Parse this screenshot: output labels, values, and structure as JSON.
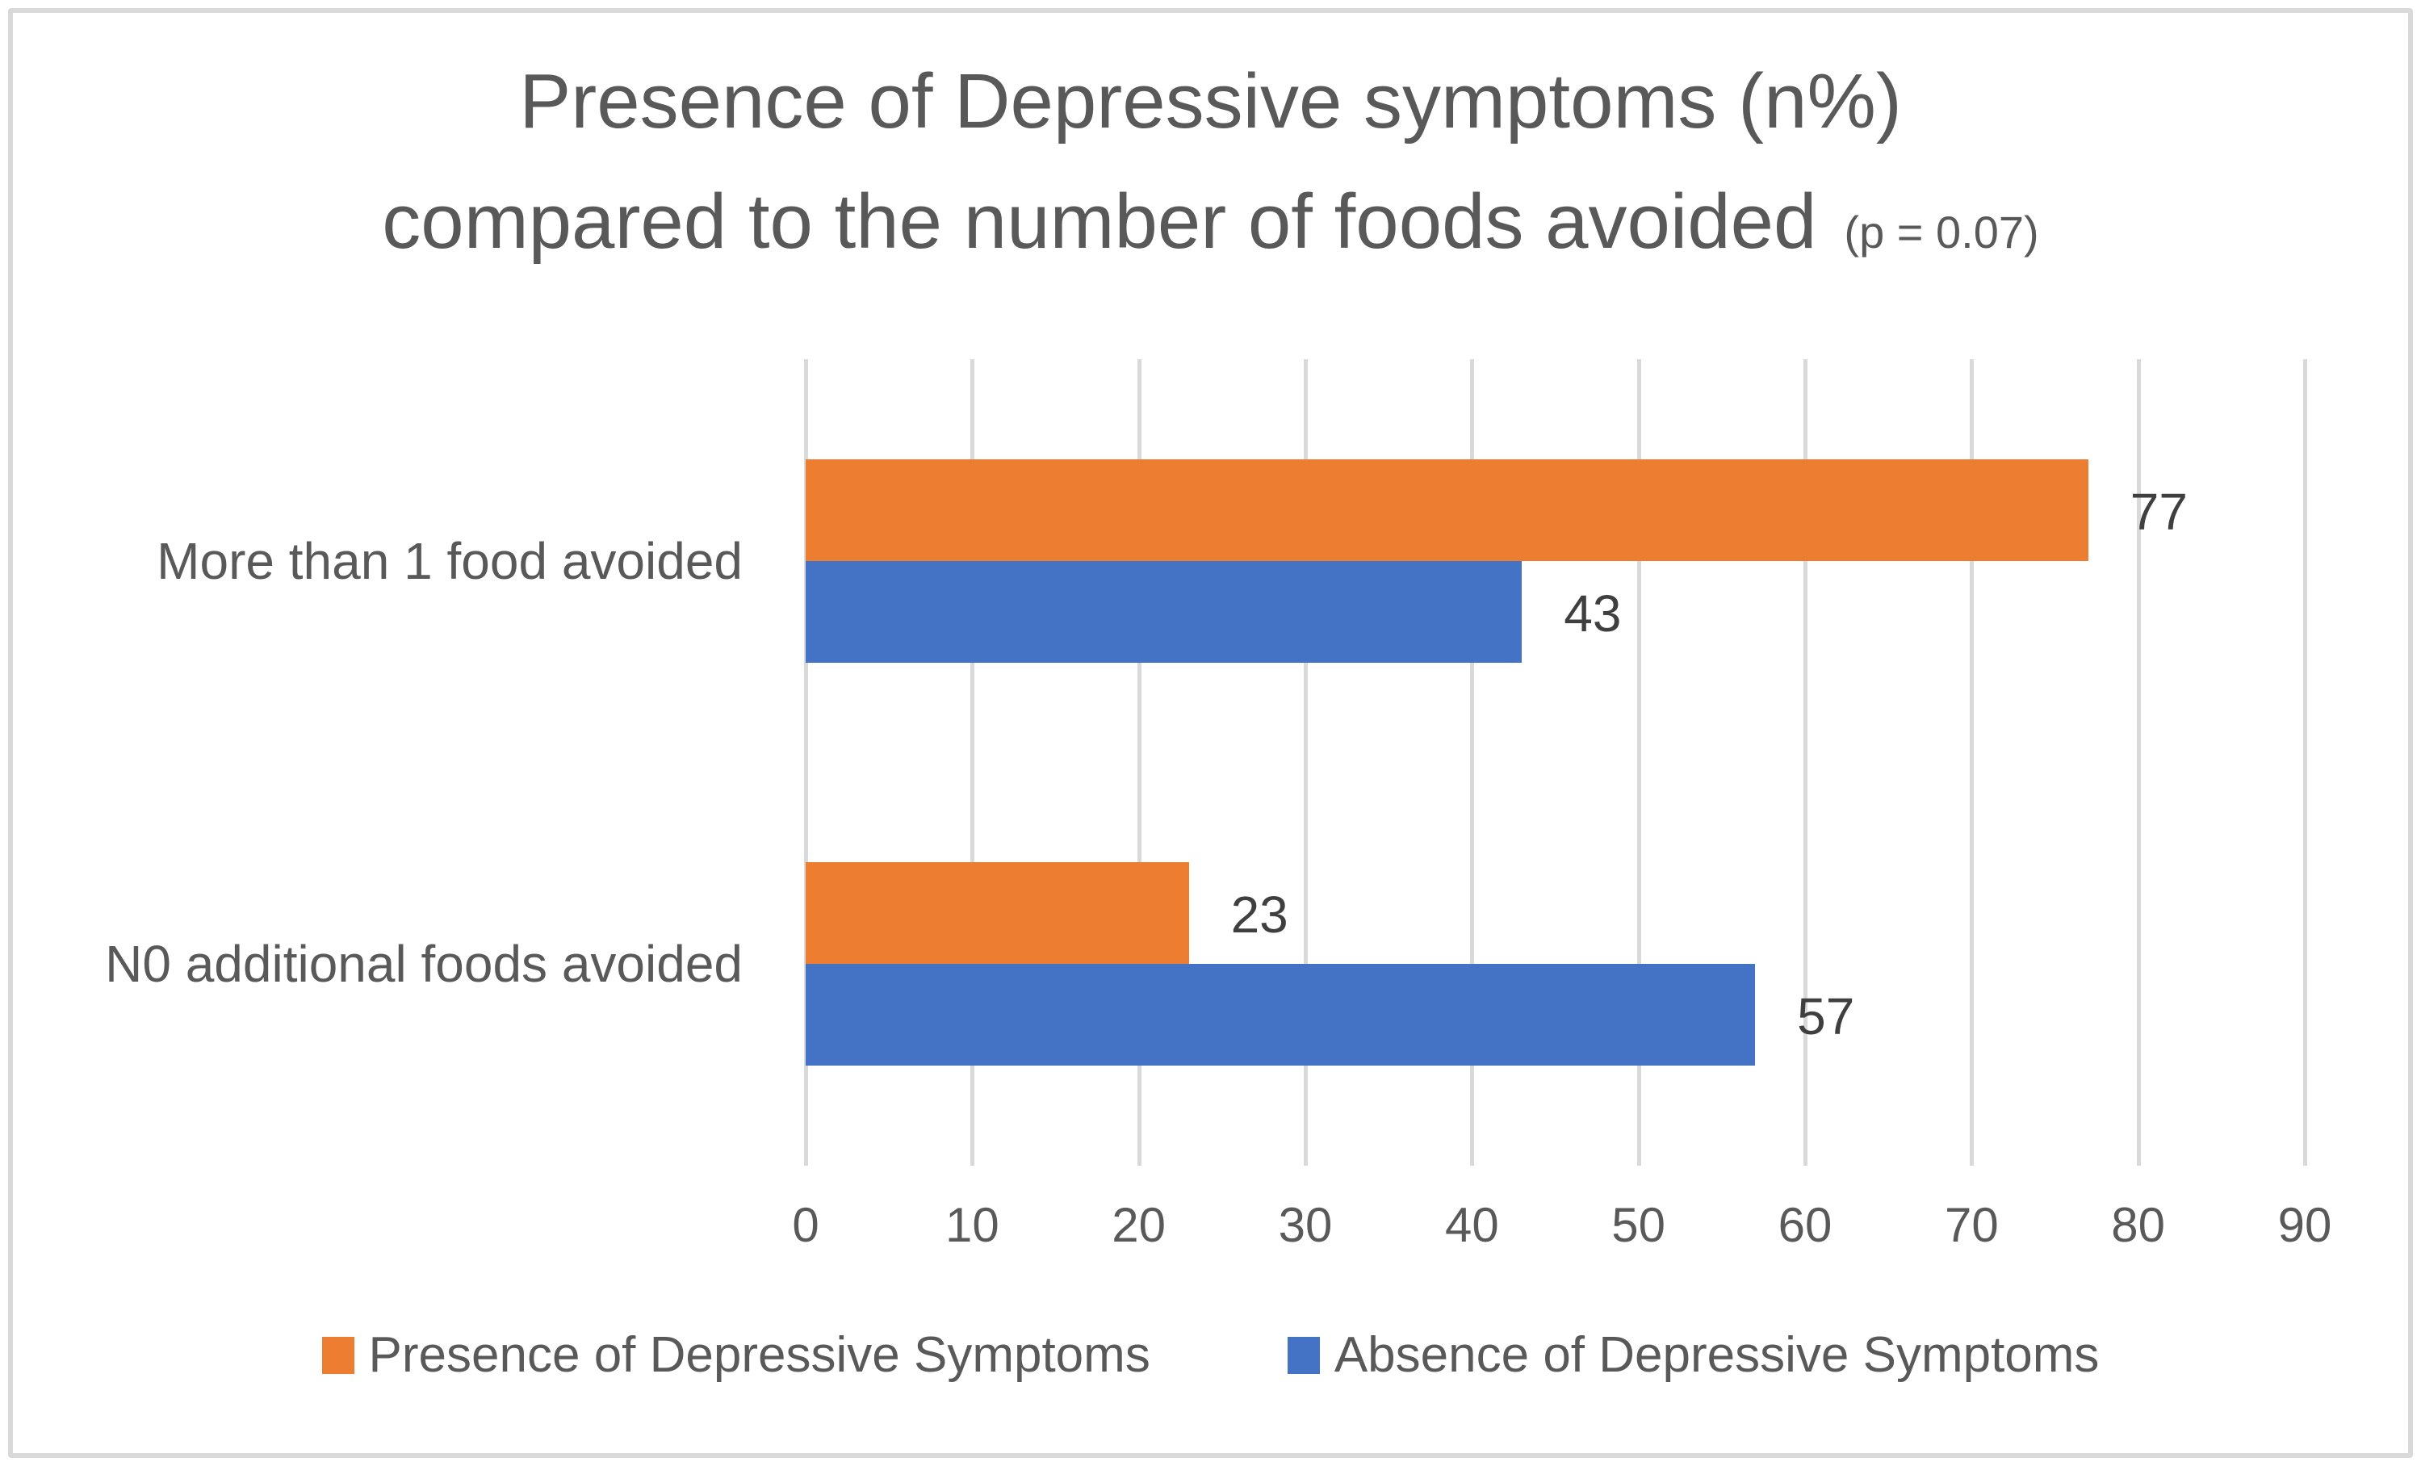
{
  "title": {
    "line1": "Presence of Depressive symptoms (n%)",
    "line2": "compared to the number of foods avoided",
    "pvalue": "(p = 0.07)"
  },
  "chart_data": {
    "type": "bar",
    "orientation": "horizontal",
    "title": "Presence of Depressive symptoms (n%) compared to the number of foods avoided (p = 0.07)",
    "categories": [
      "More than 1 food avoided",
      "N0 additional foods avoided"
    ],
    "series": [
      {
        "name": "Presence of Depressive Symptoms",
        "color": "#ED7D31",
        "values": [
          77,
          23
        ]
      },
      {
        "name": "Absence of Depressive Symptoms",
        "color": "#4472C4",
        "values": [
          43,
          57
        ]
      }
    ],
    "x_axis": {
      "min": 0,
      "max": 90,
      "tick_interval": 10,
      "ticks": [
        "0",
        "10",
        "20",
        "30",
        "40",
        "50",
        "60",
        "70",
        "80",
        "90"
      ]
    },
    "data_labels_shown": true,
    "grid": "vertical",
    "gridline_color": "#D9D9D9",
    "legend_position": "bottom",
    "text_color": "#595959",
    "data_label_color": "#3F3F3F"
  }
}
